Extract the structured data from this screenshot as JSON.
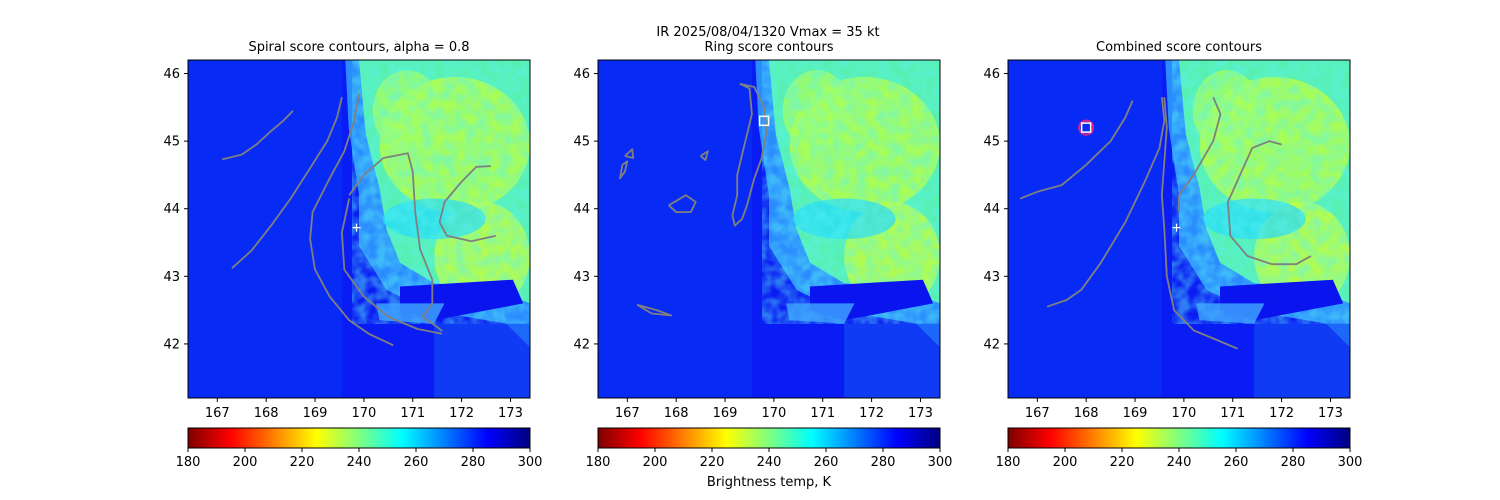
{
  "figure": {
    "suptitle_line1": "IR  2025/08/04/1320    Vmax = 35 kt",
    "colorbar_label": "Brightness temp, K"
  },
  "colors": {
    "contour": "#808080",
    "center_marker": "#ffffff",
    "circle_marker": "#e0208a",
    "square_marker": "#ffffff",
    "panel_border": "#000000"
  },
  "chart_data": [
    {
      "type": "heatmap",
      "title": "Spiral score contours, alpha =  0.8",
      "xlim": [
        166.4,
        173.4
      ],
      "ylim": [
        41.2,
        46.2
      ],
      "xticks": [
        "167",
        "168",
        "169",
        "170",
        "171",
        "172",
        "173"
      ],
      "yticks": [
        "42",
        "43",
        "44",
        "45",
        "46"
      ],
      "colormap": "jet",
      "colorbar": {
        "range": [
          180,
          300
        ],
        "ticks": [
          "180",
          "200",
          "220",
          "240",
          "260",
          "280",
          "300"
        ]
      },
      "center_marker": {
        "shape": "plus",
        "lon": 169.85,
        "lat": 43.72
      },
      "contours": [
        [
          [
            167.1,
            44.73
          ],
          [
            167.5,
            44.8
          ],
          [
            167.8,
            44.95
          ],
          [
            168.1,
            45.15
          ],
          [
            168.35,
            45.3
          ],
          [
            168.55,
            45.45
          ]
        ],
        [
          [
            167.3,
            43.12
          ],
          [
            167.7,
            43.38
          ],
          [
            168.1,
            43.75
          ],
          [
            168.5,
            44.15
          ],
          [
            168.9,
            44.6
          ],
          [
            169.25,
            45.0
          ],
          [
            169.45,
            45.35
          ],
          [
            169.55,
            45.65
          ]
        ],
        [
          [
            169.9,
            45.7
          ],
          [
            169.8,
            45.3
          ],
          [
            169.6,
            44.85
          ],
          [
            169.3,
            44.45
          ],
          [
            168.95,
            43.95
          ],
          [
            168.9,
            43.55
          ],
          [
            169.0,
            43.1
          ],
          [
            169.3,
            42.7
          ],
          [
            169.7,
            42.35
          ],
          [
            170.1,
            42.15
          ],
          [
            170.6,
            41.98
          ]
        ],
        [
          [
            169.7,
            44.2
          ],
          [
            170.0,
            44.5
          ],
          [
            170.4,
            44.75
          ],
          [
            170.9,
            44.82
          ],
          [
            171.0,
            44.55
          ],
          [
            171.05,
            43.95
          ],
          [
            171.15,
            43.4
          ],
          [
            171.4,
            42.95
          ],
          [
            171.4,
            42.6
          ],
          [
            171.2,
            42.4
          ],
          [
            171.5,
            42.25
          ],
          [
            171.6,
            42.19
          ]
        ],
        [
          [
            169.7,
            44.15
          ],
          [
            169.55,
            43.65
          ],
          [
            169.6,
            43.1
          ],
          [
            170.0,
            42.7
          ],
          [
            170.5,
            42.4
          ],
          [
            171.1,
            42.22
          ],
          [
            171.6,
            42.15
          ]
        ],
        [
          [
            172.6,
            44.63
          ],
          [
            172.3,
            44.62
          ],
          [
            172.0,
            44.4
          ],
          [
            171.65,
            44.1
          ],
          [
            171.55,
            43.8
          ],
          [
            171.7,
            43.6
          ],
          [
            172.2,
            43.52
          ],
          [
            172.7,
            43.6
          ]
        ]
      ]
    },
    {
      "type": "heatmap",
      "title": "Ring score contours",
      "xlim": [
        166.4,
        173.4
      ],
      "ylim": [
        41.2,
        46.2
      ],
      "xticks": [
        "167",
        "168",
        "169",
        "170",
        "171",
        "172",
        "173"
      ],
      "yticks": [
        "42",
        "43",
        "44",
        "45",
        "46"
      ],
      "colormap": "jet",
      "colorbar": {
        "range": [
          180,
          300
        ],
        "ticks": [
          "180",
          "200",
          "220",
          "240",
          "260",
          "280",
          "300"
        ]
      },
      "square_marker": {
        "lon": 169.8,
        "lat": 45.3
      },
      "contours": [
        [
          [
            169.3,
            45.85
          ],
          [
            169.5,
            45.78
          ],
          [
            169.55,
            45.4
          ],
          [
            169.45,
            45.1
          ],
          [
            169.35,
            44.8
          ],
          [
            169.25,
            44.5
          ],
          [
            169.25,
            44.2
          ],
          [
            169.15,
            43.9
          ],
          [
            169.2,
            43.75
          ],
          [
            169.35,
            43.85
          ],
          [
            169.45,
            44.05
          ],
          [
            169.6,
            44.45
          ],
          [
            169.75,
            44.75
          ],
          [
            169.85,
            45.15
          ],
          [
            169.8,
            45.5
          ],
          [
            169.6,
            45.8
          ],
          [
            169.3,
            45.85
          ]
        ],
        [
          [
            166.9,
            44.65
          ],
          [
            167.0,
            44.7
          ],
          [
            166.95,
            44.55
          ],
          [
            166.85,
            44.45
          ],
          [
            166.9,
            44.65
          ]
        ],
        [
          [
            166.95,
            44.78
          ],
          [
            167.1,
            44.88
          ],
          [
            167.12,
            44.75
          ],
          [
            166.95,
            44.78
          ]
        ],
        [
          [
            167.85,
            44.05
          ],
          [
            168.2,
            44.2
          ],
          [
            168.4,
            44.1
          ],
          [
            168.3,
            43.95
          ],
          [
            168.0,
            43.95
          ],
          [
            167.85,
            44.05
          ]
        ],
        [
          [
            168.5,
            44.78
          ],
          [
            168.65,
            44.85
          ],
          [
            168.6,
            44.72
          ],
          [
            168.5,
            44.78
          ]
        ],
        [
          [
            167.2,
            42.58
          ],
          [
            167.6,
            42.5
          ],
          [
            167.9,
            42.42
          ],
          [
            167.5,
            42.45
          ],
          [
            167.2,
            42.58
          ]
        ]
      ]
    },
    {
      "type": "heatmap",
      "title": "Combined score contours",
      "xlim": [
        166.4,
        173.4
      ],
      "ylim": [
        41.2,
        46.2
      ],
      "xticks": [
        "167",
        "168",
        "169",
        "170",
        "171",
        "172",
        "173"
      ],
      "yticks": [
        "42",
        "43",
        "44",
        "45",
        "46"
      ],
      "colormap": "jet",
      "colorbar": {
        "range": [
          180,
          300
        ],
        "ticks": [
          "180",
          "200",
          "220",
          "240",
          "260",
          "280",
          "300"
        ]
      },
      "center_marker": {
        "shape": "plus",
        "lon": 169.85,
        "lat": 43.72
      },
      "circle_marker": {
        "lon": 168.0,
        "lat": 45.2
      },
      "square_marker": {
        "lon": 168.0,
        "lat": 45.2
      },
      "contours": [
        [
          [
            166.65,
            44.15
          ],
          [
            167.0,
            44.25
          ],
          [
            167.5,
            44.35
          ],
          [
            168.0,
            44.65
          ],
          [
            168.5,
            45.0
          ],
          [
            168.8,
            45.35
          ],
          [
            168.95,
            45.6
          ]
        ],
        [
          [
            167.2,
            42.55
          ],
          [
            167.6,
            42.65
          ],
          [
            167.9,
            42.8
          ],
          [
            168.3,
            43.2
          ],
          [
            168.8,
            43.8
          ],
          [
            169.2,
            44.4
          ],
          [
            169.5,
            44.9
          ],
          [
            169.6,
            45.3
          ],
          [
            169.55,
            45.65
          ]
        ],
        [
          [
            169.6,
            45.65
          ],
          [
            169.65,
            45.2
          ],
          [
            169.6,
            44.7
          ],
          [
            169.55,
            44.2
          ],
          [
            169.6,
            43.7
          ],
          [
            169.65,
            43.0
          ],
          [
            169.8,
            42.5
          ],
          [
            170.2,
            42.2
          ],
          [
            170.7,
            42.05
          ],
          [
            171.1,
            41.93
          ]
        ],
        [
          [
            170.6,
            45.65
          ],
          [
            170.75,
            45.4
          ],
          [
            170.6,
            45.0
          ],
          [
            170.2,
            44.5
          ],
          [
            169.9,
            44.2
          ],
          [
            169.9,
            43.95
          ]
        ],
        [
          [
            172.0,
            44.95
          ],
          [
            171.75,
            45.0
          ],
          [
            171.4,
            44.9
          ],
          [
            171.15,
            44.5
          ],
          [
            170.9,
            44.1
          ],
          [
            170.95,
            43.6
          ],
          [
            171.3,
            43.3
          ],
          [
            171.8,
            43.18
          ],
          [
            172.3,
            43.18
          ],
          [
            172.6,
            43.3
          ]
        ]
      ]
    }
  ]
}
